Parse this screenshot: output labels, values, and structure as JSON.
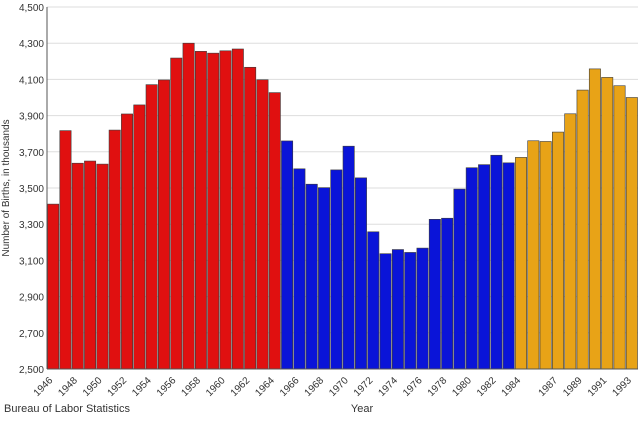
{
  "chart_data": {
    "type": "bar",
    "title": "",
    "ylabel": "Number of Births, in thousands",
    "xlabel": "Year",
    "source": "Bureau of Labor Statistics",
    "ylim": [
      2500,
      4500
    ],
    "yticks": [
      2500,
      2700,
      2900,
      3100,
      3300,
      3500,
      3700,
      3900,
      4100,
      4300,
      4500
    ],
    "ytick_labels": [
      "2,500",
      "2,700",
      "2,900",
      "3,100",
      "3,300",
      "3,500",
      "3,700",
      "3,900",
      "4,100",
      "4,300",
      "4,500"
    ],
    "x": [
      1946,
      1947,
      1948,
      1949,
      1950,
      1951,
      1952,
      1953,
      1954,
      1955,
      1956,
      1957,
      1958,
      1959,
      1960,
      1961,
      1962,
      1963,
      1964,
      1965,
      1966,
      1967,
      1968,
      1969,
      1970,
      1971,
      1972,
      1973,
      1974,
      1975,
      1976,
      1977,
      1978,
      1979,
      1980,
      1981,
      1982,
      1983,
      1984,
      1985,
      1986,
      1987,
      1988,
      1989,
      1990,
      1991,
      1992,
      1993
    ],
    "xtick_labels": [
      "1946",
      "1948",
      "1950",
      "1952",
      "1954",
      "1956",
      "1958",
      "1960",
      "1962",
      "1964",
      "1966",
      "1968",
      "1970",
      "1972",
      "1974",
      "1976",
      "1978",
      "1980",
      "1982",
      "1984",
      "1987",
      "1989",
      "1991",
      "1993"
    ],
    "values": [
      3411,
      3817,
      3637,
      3649,
      3632,
      3820,
      3909,
      3959,
      4071,
      4097,
      4218,
      4300,
      4255,
      4245,
      4258,
      4268,
      4167,
      4098,
      4027,
      3760,
      3606,
      3521,
      3502,
      3600,
      3731,
      3556,
      3258,
      3137,
      3160,
      3144,
      3168,
      3327,
      3333,
      3494,
      3612,
      3629,
      3681,
      3639,
      3669,
      3761,
      3757,
      3809,
      3910,
      4041,
      4158,
      4111,
      4065,
      4000
    ],
    "colors": {
      "group1": "#e01010",
      "group2": "#0a14d8",
      "group3": "#e8a317",
      "grid": "#dddddd"
    },
    "group_bounds": [
      1946,
      1964,
      1984,
      1993
    ]
  }
}
